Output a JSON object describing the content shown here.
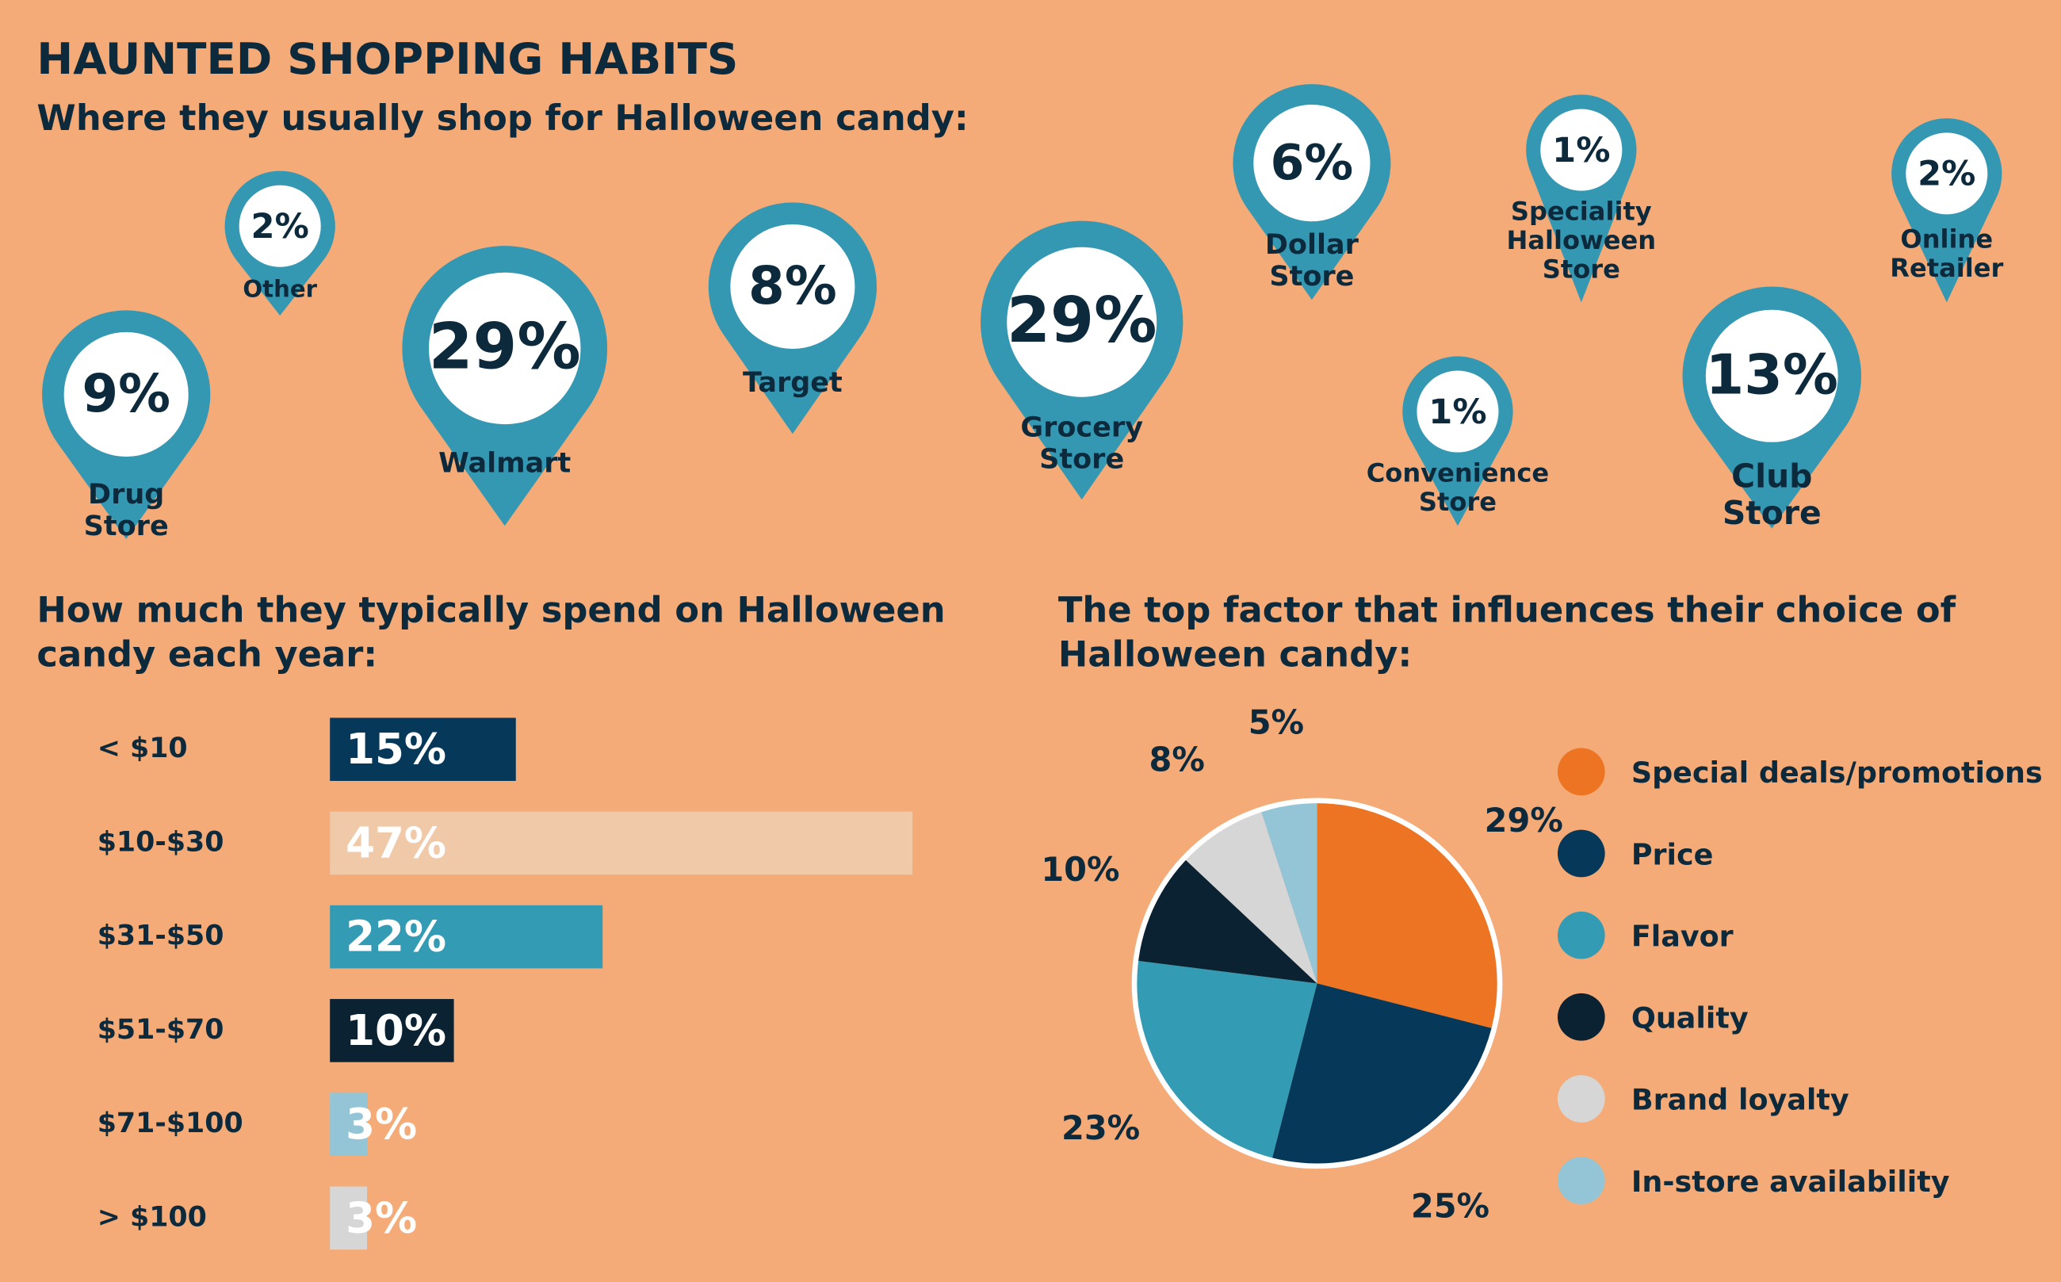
{
  "title": "HAUNTED SHOPPING HABITS",
  "chart_data": [
    {
      "type": "pin",
      "title": "Where they usually shop for Halloween candy:",
      "color": "#3598b3",
      "categories": [
        "Drug Store",
        "Other",
        "Walmart",
        "Target",
        "Grocery Store",
        "Dollar Store",
        "Speciality Halloween Store",
        "Convenience Store",
        "Club Store",
        "Online Retailer"
      ],
      "values": [
        9,
        2,
        29,
        8,
        29,
        6,
        1,
        1,
        13,
        2
      ],
      "value_labels": [
        "9%",
        "2%",
        "29%",
        "8%",
        "29%",
        "6%",
        "1%",
        "1%",
        "13%",
        "2%"
      ]
    },
    {
      "type": "bar",
      "title": "How much they typically spend on Halloween candy each year:",
      "categories": [
        "< $10",
        "$10-$30",
        "$31-$50",
        "$51-$70",
        "$71-$100",
        "> $100"
      ],
      "values": [
        15,
        47,
        22,
        10,
        3,
        3
      ],
      "value_labels": [
        "15%",
        "47%",
        "22%",
        "10%",
        "3%",
        "3%"
      ],
      "colors": [
        "#06385a",
        "#f0c9a9",
        "#339bb4",
        "#0b2233",
        "#94c5d6",
        "#d6d6d6"
      ]
    },
    {
      "type": "pie",
      "title": "The top factor that influences their choice of Halloween candy:",
      "categories": [
        "Special deals/promotions",
        "Price",
        "Flavor",
        "Quality",
        "Brand loyalty",
        "In-store availability"
      ],
      "values": [
        29,
        25,
        23,
        10,
        8,
        5
      ],
      "value_labels": [
        "29%",
        "25%",
        "23%",
        "10%",
        "8%",
        "5%"
      ],
      "colors": [
        "#ec7422",
        "#06385a",
        "#339bb4",
        "#0b2233",
        "#d6d6d6",
        "#94c5d6"
      ]
    }
  ]
}
